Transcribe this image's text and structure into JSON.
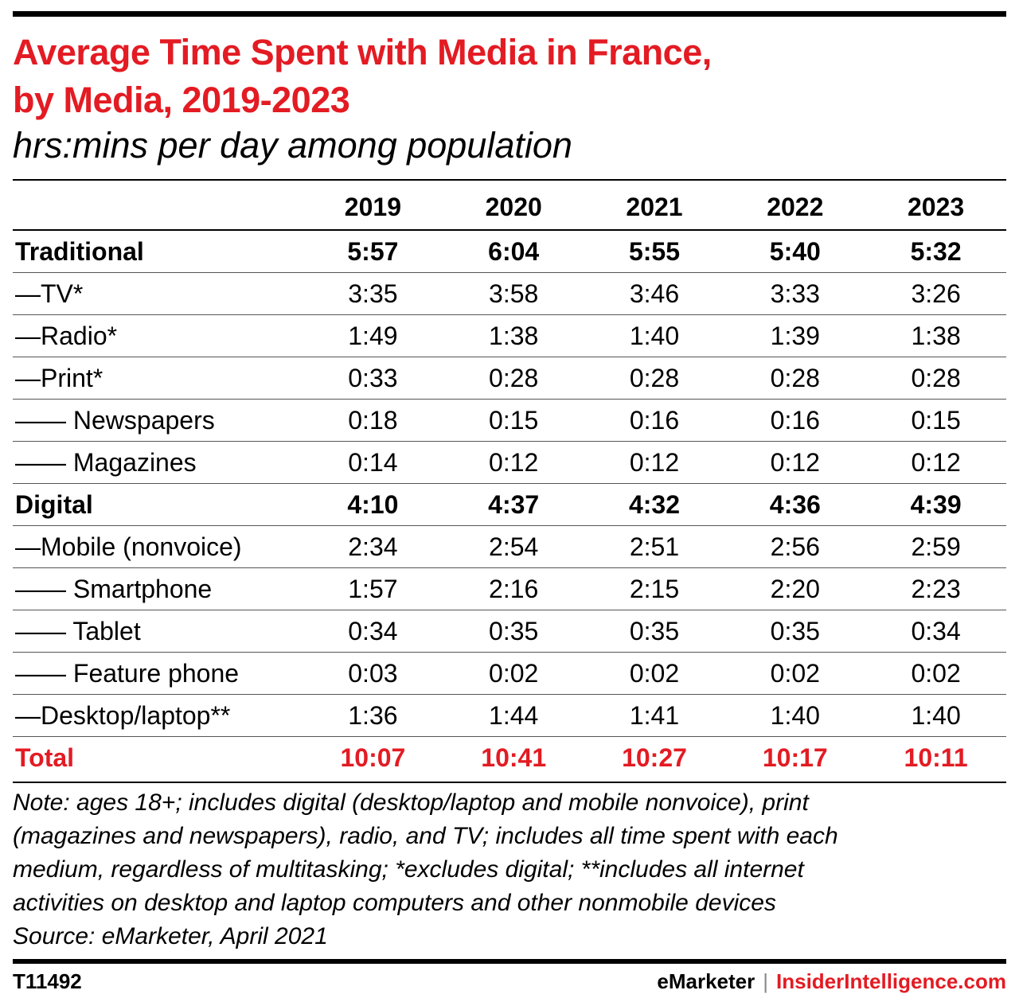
{
  "title_line1": "Average Time Spent with Media in France,",
  "title_line2": "by Media, 2019-2023",
  "subtitle": "hrs:mins per day among population",
  "chart_data": {
    "type": "table",
    "columns": [
      "2019",
      "2020",
      "2021",
      "2022",
      "2023"
    ],
    "rows": [
      {
        "label": "Traditional",
        "style": "bold",
        "values": [
          "5:57",
          "6:04",
          "5:55",
          "5:40",
          "5:32"
        ]
      },
      {
        "label": "—TV*",
        "style": "normal",
        "values": [
          "3:35",
          "3:58",
          "3:46",
          "3:33",
          "3:26"
        ]
      },
      {
        "label": "—Radio*",
        "style": "normal",
        "values": [
          "1:49",
          "1:38",
          "1:40",
          "1:39",
          "1:38"
        ]
      },
      {
        "label": "—Print*",
        "style": "normal",
        "values": [
          "0:33",
          "0:28",
          "0:28",
          "0:28",
          "0:28"
        ]
      },
      {
        "label": "—— Newspapers",
        "style": "normal",
        "values": [
          "0:18",
          "0:15",
          "0:16",
          "0:16",
          "0:15"
        ]
      },
      {
        "label": "—— Magazines",
        "style": "normal",
        "values": [
          "0:14",
          "0:12",
          "0:12",
          "0:12",
          "0:12"
        ]
      },
      {
        "label": "Digital",
        "style": "bold",
        "values": [
          "4:10",
          "4:37",
          "4:32",
          "4:36",
          "4:39"
        ]
      },
      {
        "label": "—Mobile (nonvoice)",
        "style": "normal",
        "values": [
          "2:34",
          "2:54",
          "2:51",
          "2:56",
          "2:59"
        ]
      },
      {
        "label": "—— Smartphone",
        "style": "normal",
        "values": [
          "1:57",
          "2:16",
          "2:15",
          "2:20",
          "2:23"
        ]
      },
      {
        "label": "—— Tablet",
        "style": "normal",
        "values": [
          "0:34",
          "0:35",
          "0:35",
          "0:35",
          "0:34"
        ]
      },
      {
        "label": "—— Feature phone",
        "style": "normal",
        "values": [
          "0:03",
          "0:02",
          "0:02",
          "0:02",
          "0:02"
        ]
      },
      {
        "label": "—Desktop/laptop**",
        "style": "normal",
        "values": [
          "1:36",
          "1:44",
          "1:41",
          "1:40",
          "1:40"
        ]
      },
      {
        "label": "Total",
        "style": "total",
        "values": [
          "10:07",
          "10:41",
          "10:27",
          "10:17",
          "10:11"
        ]
      }
    ]
  },
  "note_lines": [
    "Note: ages 18+; includes digital (desktop/laptop and mobile nonvoice), print",
    "(magazines and newspapers), radio, and TV; includes all time spent with each",
    "medium, regardless of multitasking; *excludes digital; **includes all internet",
    "activities on desktop and laptop computers and other nonmobile devices",
    "Source: eMarketer, April 2021"
  ],
  "footer": {
    "code": "T11492",
    "brand1": "eMarketer",
    "separator": "|",
    "brand2": "InsiderIntelligence.com"
  },
  "colors": {
    "accent": "#e31b23",
    "text": "#000000"
  }
}
